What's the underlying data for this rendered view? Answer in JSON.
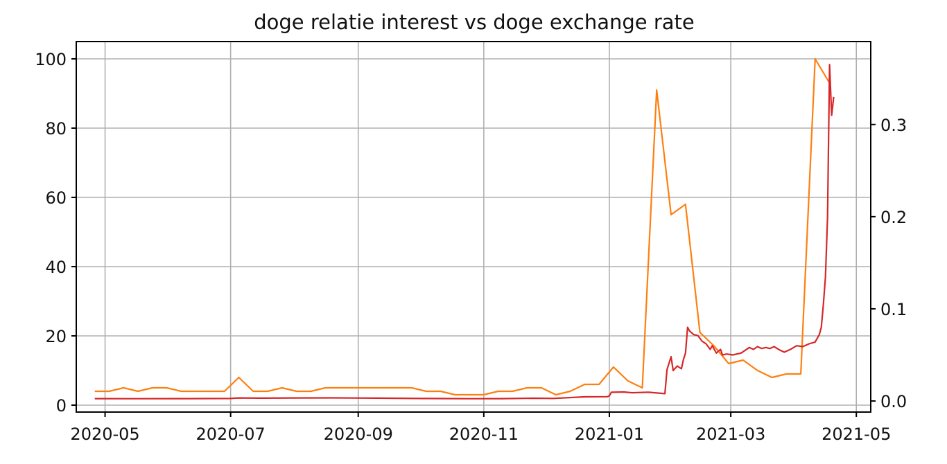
{
  "chart_data": {
    "type": "line",
    "title": "doge relatie interest vs doge exchange rate",
    "xlabel": "",
    "ylabel": "",
    "grid": true,
    "x_ticks": [
      "2020-05",
      "2020-07",
      "2020-09",
      "2020-11",
      "2021-01",
      "2021-03",
      "2021-05"
    ],
    "x_range": [
      "2020-04-17",
      "2021-05-08"
    ],
    "y_left": {
      "range": [
        -2,
        105
      ],
      "ticks": [
        "0",
        "20",
        "40",
        "60",
        "80",
        "100"
      ]
    },
    "y_right": {
      "range": [
        -0.012,
        0.39
      ],
      "ticks": [
        "0.0",
        "0.1",
        "0.2",
        "0.3"
      ]
    },
    "series": [
      {
        "axis": "left",
        "color": "#ff7f0e",
        "points": [
          [
            "2020-04-26",
            4
          ],
          [
            "2020-05-03",
            4
          ],
          [
            "2020-05-10",
            5
          ],
          [
            "2020-05-17",
            4
          ],
          [
            "2020-05-24",
            5
          ],
          [
            "2020-05-31",
            5
          ],
          [
            "2020-06-07",
            4
          ],
          [
            "2020-06-14",
            4
          ],
          [
            "2020-06-21",
            4
          ],
          [
            "2020-06-28",
            4
          ],
          [
            "2020-07-05",
            8
          ],
          [
            "2020-07-12",
            4
          ],
          [
            "2020-07-19",
            4
          ],
          [
            "2020-07-26",
            5
          ],
          [
            "2020-08-02",
            4
          ],
          [
            "2020-08-09",
            4
          ],
          [
            "2020-08-16",
            5
          ],
          [
            "2020-08-23",
            5
          ],
          [
            "2020-08-30",
            5
          ],
          [
            "2020-09-06",
            5
          ],
          [
            "2020-09-13",
            5
          ],
          [
            "2020-09-20",
            5
          ],
          [
            "2020-09-27",
            5
          ],
          [
            "2020-10-04",
            4
          ],
          [
            "2020-10-11",
            4
          ],
          [
            "2020-10-18",
            3
          ],
          [
            "2020-10-25",
            3
          ],
          [
            "2020-11-01",
            3
          ],
          [
            "2020-11-08",
            4
          ],
          [
            "2020-11-15",
            4
          ],
          [
            "2020-11-22",
            5
          ],
          [
            "2020-11-29",
            5
          ],
          [
            "2020-12-06",
            3
          ],
          [
            "2020-12-13",
            4
          ],
          [
            "2020-12-20",
            6
          ],
          [
            "2020-12-27",
            6
          ],
          [
            "2021-01-03",
            11
          ],
          [
            "2021-01-10",
            7
          ],
          [
            "2021-01-17",
            5
          ],
          [
            "2021-01-24",
            91
          ],
          [
            "2021-01-31",
            55
          ],
          [
            "2021-02-07",
            58
          ],
          [
            "2021-02-14",
            21
          ],
          [
            "2021-02-21",
            17
          ],
          [
            "2021-02-28",
            12
          ],
          [
            "2021-03-07",
            13
          ],
          [
            "2021-03-14",
            10
          ],
          [
            "2021-03-21",
            8
          ],
          [
            "2021-03-28",
            9
          ],
          [
            "2021-04-04",
            9
          ],
          [
            "2021-04-11",
            100
          ],
          [
            "2021-04-18",
            93
          ]
        ]
      },
      {
        "axis": "right",
        "color": "#d62728",
        "points": [
          [
            "2020-04-26",
            0.0026
          ],
          [
            "2020-05-15",
            0.0025
          ],
          [
            "2020-06-10",
            0.0026
          ],
          [
            "2020-07-01",
            0.0027
          ],
          [
            "2020-07-05",
            0.0033
          ],
          [
            "2020-07-15",
            0.0031
          ],
          [
            "2020-08-01",
            0.0033
          ],
          [
            "2020-08-20",
            0.0034
          ],
          [
            "2020-09-10",
            0.0031
          ],
          [
            "2020-10-01",
            0.0027
          ],
          [
            "2020-10-25",
            0.0025
          ],
          [
            "2020-11-10",
            0.0026
          ],
          [
            "2020-11-25",
            0.003
          ],
          [
            "2020-12-05",
            0.0028
          ],
          [
            "2020-12-20",
            0.0045
          ],
          [
            "2020-12-31",
            0.0047
          ],
          [
            "2021-01-01",
            0.0055
          ],
          [
            "2021-01-02",
            0.0095
          ],
          [
            "2021-01-08",
            0.0098
          ],
          [
            "2021-01-12",
            0.009
          ],
          [
            "2021-01-20",
            0.0095
          ],
          [
            "2021-01-28",
            0.008
          ],
          [
            "2021-01-29",
            0.034
          ],
          [
            "2021-01-31",
            0.048
          ],
          [
            "2021-02-01",
            0.033
          ],
          [
            "2021-02-03",
            0.038
          ],
          [
            "2021-02-05",
            0.035
          ],
          [
            "2021-02-06",
            0.045
          ],
          [
            "2021-02-07",
            0.052
          ],
          [
            "2021-02-08",
            0.08
          ],
          [
            "2021-02-09",
            0.076
          ],
          [
            "2021-02-11",
            0.072
          ],
          [
            "2021-02-13",
            0.071
          ],
          [
            "2021-02-15",
            0.065
          ],
          [
            "2021-02-17",
            0.062
          ],
          [
            "2021-02-19",
            0.056
          ],
          [
            "2021-02-20",
            0.06
          ],
          [
            "2021-02-22",
            0.052
          ],
          [
            "2021-02-24",
            0.056
          ],
          [
            "2021-02-25",
            0.05
          ],
          [
            "2021-02-27",
            0.051
          ],
          [
            "2021-03-02",
            0.05
          ],
          [
            "2021-03-06",
            0.052
          ],
          [
            "2021-03-08",
            0.055
          ],
          [
            "2021-03-10",
            0.058
          ],
          [
            "2021-03-12",
            0.056
          ],
          [
            "2021-03-14",
            0.059
          ],
          [
            "2021-03-16",
            0.057
          ],
          [
            "2021-03-18",
            0.058
          ],
          [
            "2021-03-20",
            0.057
          ],
          [
            "2021-03-22",
            0.059
          ],
          [
            "2021-03-25",
            0.055
          ],
          [
            "2021-03-27",
            0.053
          ],
          [
            "2021-03-30",
            0.056
          ],
          [
            "2021-04-02",
            0.06
          ],
          [
            "2021-04-05",
            0.059
          ],
          [
            "2021-04-08",
            0.062
          ],
          [
            "2021-04-11",
            0.064
          ],
          [
            "2021-04-13",
            0.072
          ],
          [
            "2021-04-14",
            0.08
          ],
          [
            "2021-04-15",
            0.105
          ],
          [
            "2021-04-16",
            0.135
          ],
          [
            "2021-04-17",
            0.2
          ],
          [
            "2021-04-18",
            0.365
          ],
          [
            "2021-04-19",
            0.31
          ],
          [
            "2021-04-20",
            0.33
          ]
        ]
      }
    ]
  }
}
